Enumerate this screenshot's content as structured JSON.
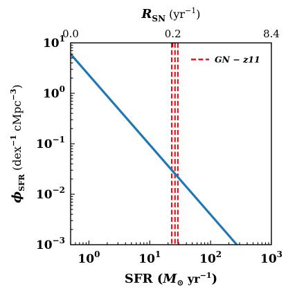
{
  "chart_data": {
    "type": "line",
    "x_scale": "log",
    "y_scale": "log",
    "xlim": [
      0.5,
      1000
    ],
    "ylim": [
      0.001,
      10
    ],
    "xlabel": "SFR (M⊙ yr⁻¹)",
    "ylabel": "ϕSFR (dex⁻¹ cMpc⁻³)",
    "top_axis_label": "RSN (yr⁻¹)",
    "x_ticks": [
      {
        "value": 1,
        "base": "10",
        "exp": "0"
      },
      {
        "value": 10,
        "base": "10",
        "exp": "1"
      },
      {
        "value": 100,
        "base": "10",
        "exp": "2"
      },
      {
        "value": 1000,
        "base": "10",
        "exp": "3"
      }
    ],
    "y_ticks": [
      {
        "value": 0.001,
        "base": "10",
        "exp": "−3"
      },
      {
        "value": 0.01,
        "base": "10",
        "exp": "−2"
      },
      {
        "value": 0.1,
        "base": "10",
        "exp": "−1"
      },
      {
        "value": 1,
        "base": "10",
        "exp": "0"
      },
      {
        "value": 10,
        "base": "10",
        "exp": "1"
      }
    ],
    "top_ticks": [
      {
        "sfr": 0.5,
        "label": "0.0"
      },
      {
        "sfr": 24,
        "label": "0.2"
      },
      {
        "sfr": 1000,
        "label": "8.4"
      }
    ],
    "series": [
      {
        "color": "#1f77b4",
        "x": [
          0.5,
          270
        ],
        "y": [
          6.0,
          0.001
        ]
      }
    ],
    "vlines": [
      {
        "name": "GN − z11",
        "x": 26,
        "x_err": [
          23,
          29
        ],
        "color": "#e8141c",
        "style": "dashed"
      }
    ],
    "legend": {
      "position": "top-right",
      "label": "GN − z11"
    },
    "grid": false
  }
}
